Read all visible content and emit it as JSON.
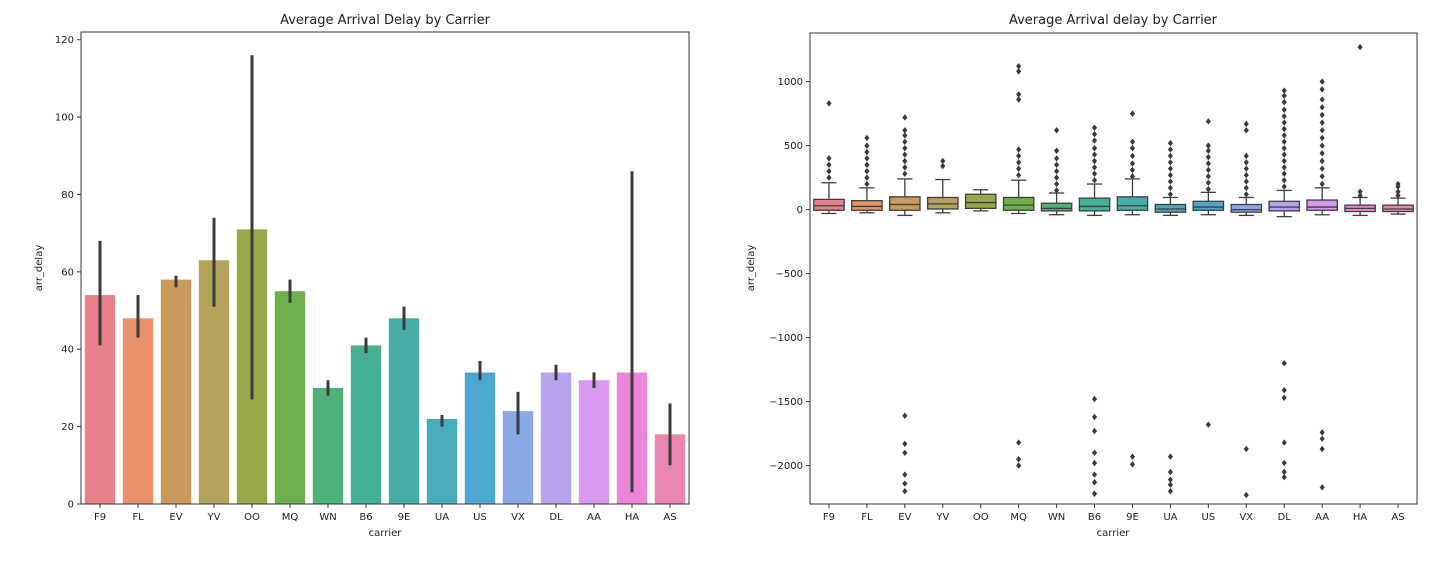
{
  "chart_data": [
    {
      "type": "bar",
      "title": "Average Arrival Delay by Carrier",
      "xlabel": "carrier",
      "ylabel": "arr_delay",
      "ylim": [
        0,
        122
      ],
      "yticks": [
        0,
        20,
        40,
        60,
        80,
        100,
        120
      ],
      "categories": [
        "F9",
        "FL",
        "EV",
        "YV",
        "OO",
        "MQ",
        "WN",
        "B6",
        "9E",
        "UA",
        "US",
        "VX",
        "DL",
        "AA",
        "HA",
        "AS"
      ],
      "values": [
        54,
        48,
        58,
        63,
        71,
        55,
        30,
        41,
        48,
        22,
        34,
        24,
        34,
        32,
        34,
        18
      ],
      "ci_low": [
        41,
        43,
        56,
        51,
        27,
        52,
        28,
        39,
        45,
        20,
        32,
        18,
        32,
        30,
        3,
        10
      ],
      "ci_high": [
        68,
        54,
        59,
        74,
        116,
        58,
        32,
        43,
        51,
        23,
        37,
        29,
        36,
        34,
        86,
        26
      ],
      "colors": [
        "#e8808a",
        "#e8916a",
        "#c99a5c",
        "#b3a25a",
        "#98a84a",
        "#6bb04a",
        "#4fb07a",
        "#45b094",
        "#44aea7",
        "#46abbb",
        "#4ca8d3",
        "#8aa8e8",
        "#b7a3ee",
        "#d798ee",
        "#ec86d6",
        "#eb85b2"
      ],
      "grid": false
    },
    {
      "type": "box",
      "title": "Average Arrival delay by Carrier",
      "xlabel": "carrier",
      "ylabel": "arr_delay",
      "ylim": [
        -2300,
        1380
      ],
      "yticks": [
        -2000,
        -1500,
        -1000,
        -500,
        0,
        500,
        1000
      ],
      "categories": [
        "F9",
        "FL",
        "EV",
        "YV",
        "OO",
        "MQ",
        "WN",
        "B6",
        "9E",
        "UA",
        "US",
        "VX",
        "DL",
        "AA",
        "HA",
        "AS"
      ],
      "boxes": [
        {
          "whisker_low": -30,
          "q1": -5,
          "median": 30,
          "q3": 80,
          "whisker_high": 210
        },
        {
          "whisker_low": -25,
          "q1": -5,
          "median": 25,
          "q3": 70,
          "whisker_high": 170
        },
        {
          "whisker_low": -45,
          "q1": -5,
          "median": 40,
          "q3": 100,
          "whisker_high": 240
        },
        {
          "whisker_low": -25,
          "q1": 5,
          "median": 45,
          "q3": 95,
          "whisker_high": 235
        },
        {
          "whisker_low": -10,
          "q1": 10,
          "median": 55,
          "q3": 120,
          "whisker_high": 155
        },
        {
          "whisker_low": -30,
          "q1": -5,
          "median": 35,
          "q3": 95,
          "whisker_high": 230
        },
        {
          "whisker_low": -40,
          "q1": -10,
          "median": 10,
          "q3": 50,
          "whisker_high": 130
        },
        {
          "whisker_low": -45,
          "q1": -10,
          "median": 25,
          "q3": 90,
          "whisker_high": 200
        },
        {
          "whisker_low": -40,
          "q1": -5,
          "median": 30,
          "q3": 100,
          "whisker_high": 240
        },
        {
          "whisker_low": -45,
          "q1": -20,
          "median": 5,
          "q3": 40,
          "whisker_high": 95
        },
        {
          "whisker_low": -40,
          "q1": -5,
          "median": 20,
          "q3": 65,
          "whisker_high": 135
        },
        {
          "whisker_low": -45,
          "q1": -20,
          "median": 0,
          "q3": 40,
          "whisker_high": 95
        },
        {
          "whisker_low": -55,
          "q1": -10,
          "median": 20,
          "q3": 65,
          "whisker_high": 150
        },
        {
          "whisker_low": -40,
          "q1": -5,
          "median": 20,
          "q3": 75,
          "whisker_high": 170
        },
        {
          "whisker_low": -45,
          "q1": -15,
          "median": 10,
          "q3": 35,
          "whisker_high": 95
        },
        {
          "whisker_low": -35,
          "q1": -15,
          "median": 5,
          "q3": 35,
          "whisker_high": 90
        }
      ],
      "outliers": [
        [
          250,
          300,
          350,
          400,
          830
        ],
        [
          200,
          250,
          300,
          350,
          400,
          450,
          500,
          560
        ],
        [
          280,
          330,
          380,
          430,
          480,
          530,
          580,
          620,
          720,
          -1610,
          -1830,
          -1900,
          -2070,
          -2140,
          -2200
        ],
        [
          340,
          380
        ],
        [],
        [
          270,
          320,
          370,
          420,
          470,
          860,
          900,
          1080,
          1120,
          -1820,
          -1950,
          -2000
        ],
        [
          150,
          200,
          250,
          300,
          350,
          400,
          460,
          620
        ],
        [
          230,
          280,
          330,
          380,
          430,
          480,
          540,
          590,
          640,
          -1480,
          -1620,
          -1730,
          -1900,
          -1980,
          -2070,
          -2130,
          -2220
        ],
        [
          260,
          310,
          360,
          420,
          480,
          530,
          750,
          -1930,
          -1990
        ],
        [
          120,
          170,
          220,
          270,
          320,
          370,
          420,
          470,
          520,
          -1930,
          -2050,
          -2110,
          -2150,
          -2200
        ],
        [
          160,
          210,
          260,
          310,
          360,
          410,
          460,
          500,
          690,
          -1680
        ],
        [
          120,
          170,
          220,
          270,
          320,
          370,
          420,
          620,
          670,
          -1870,
          -2230
        ],
        [
          180,
          230,
          280,
          330,
          380,
          430,
          480,
          530,
          580,
          630,
          680,
          730,
          780,
          840,
          890,
          930,
          -1200,
          -1410,
          -1470,
          -1820,
          -1980,
          -2050,
          -2090
        ],
        [
          200,
          260,
          320,
          380,
          440,
          500,
          560,
          620,
          680,
          740,
          800,
          860,
          940,
          1000,
          -1740,
          -1790,
          -1870,
          -2170
        ],
        [
          110,
          140,
          1270
        ],
        [
          110,
          140,
          180,
          200
        ]
      ],
      "colors": [
        "#e8808a",
        "#e8916a",
        "#c99a5c",
        "#b3a25a",
        "#98a84a",
        "#6bb04a",
        "#4fb07a",
        "#45b094",
        "#44aea7",
        "#46abbb",
        "#4ca8d3",
        "#8aa8e8",
        "#b7a3ee",
        "#d798ee",
        "#ec86d6",
        "#eb85b2"
      ],
      "grid": false
    }
  ]
}
